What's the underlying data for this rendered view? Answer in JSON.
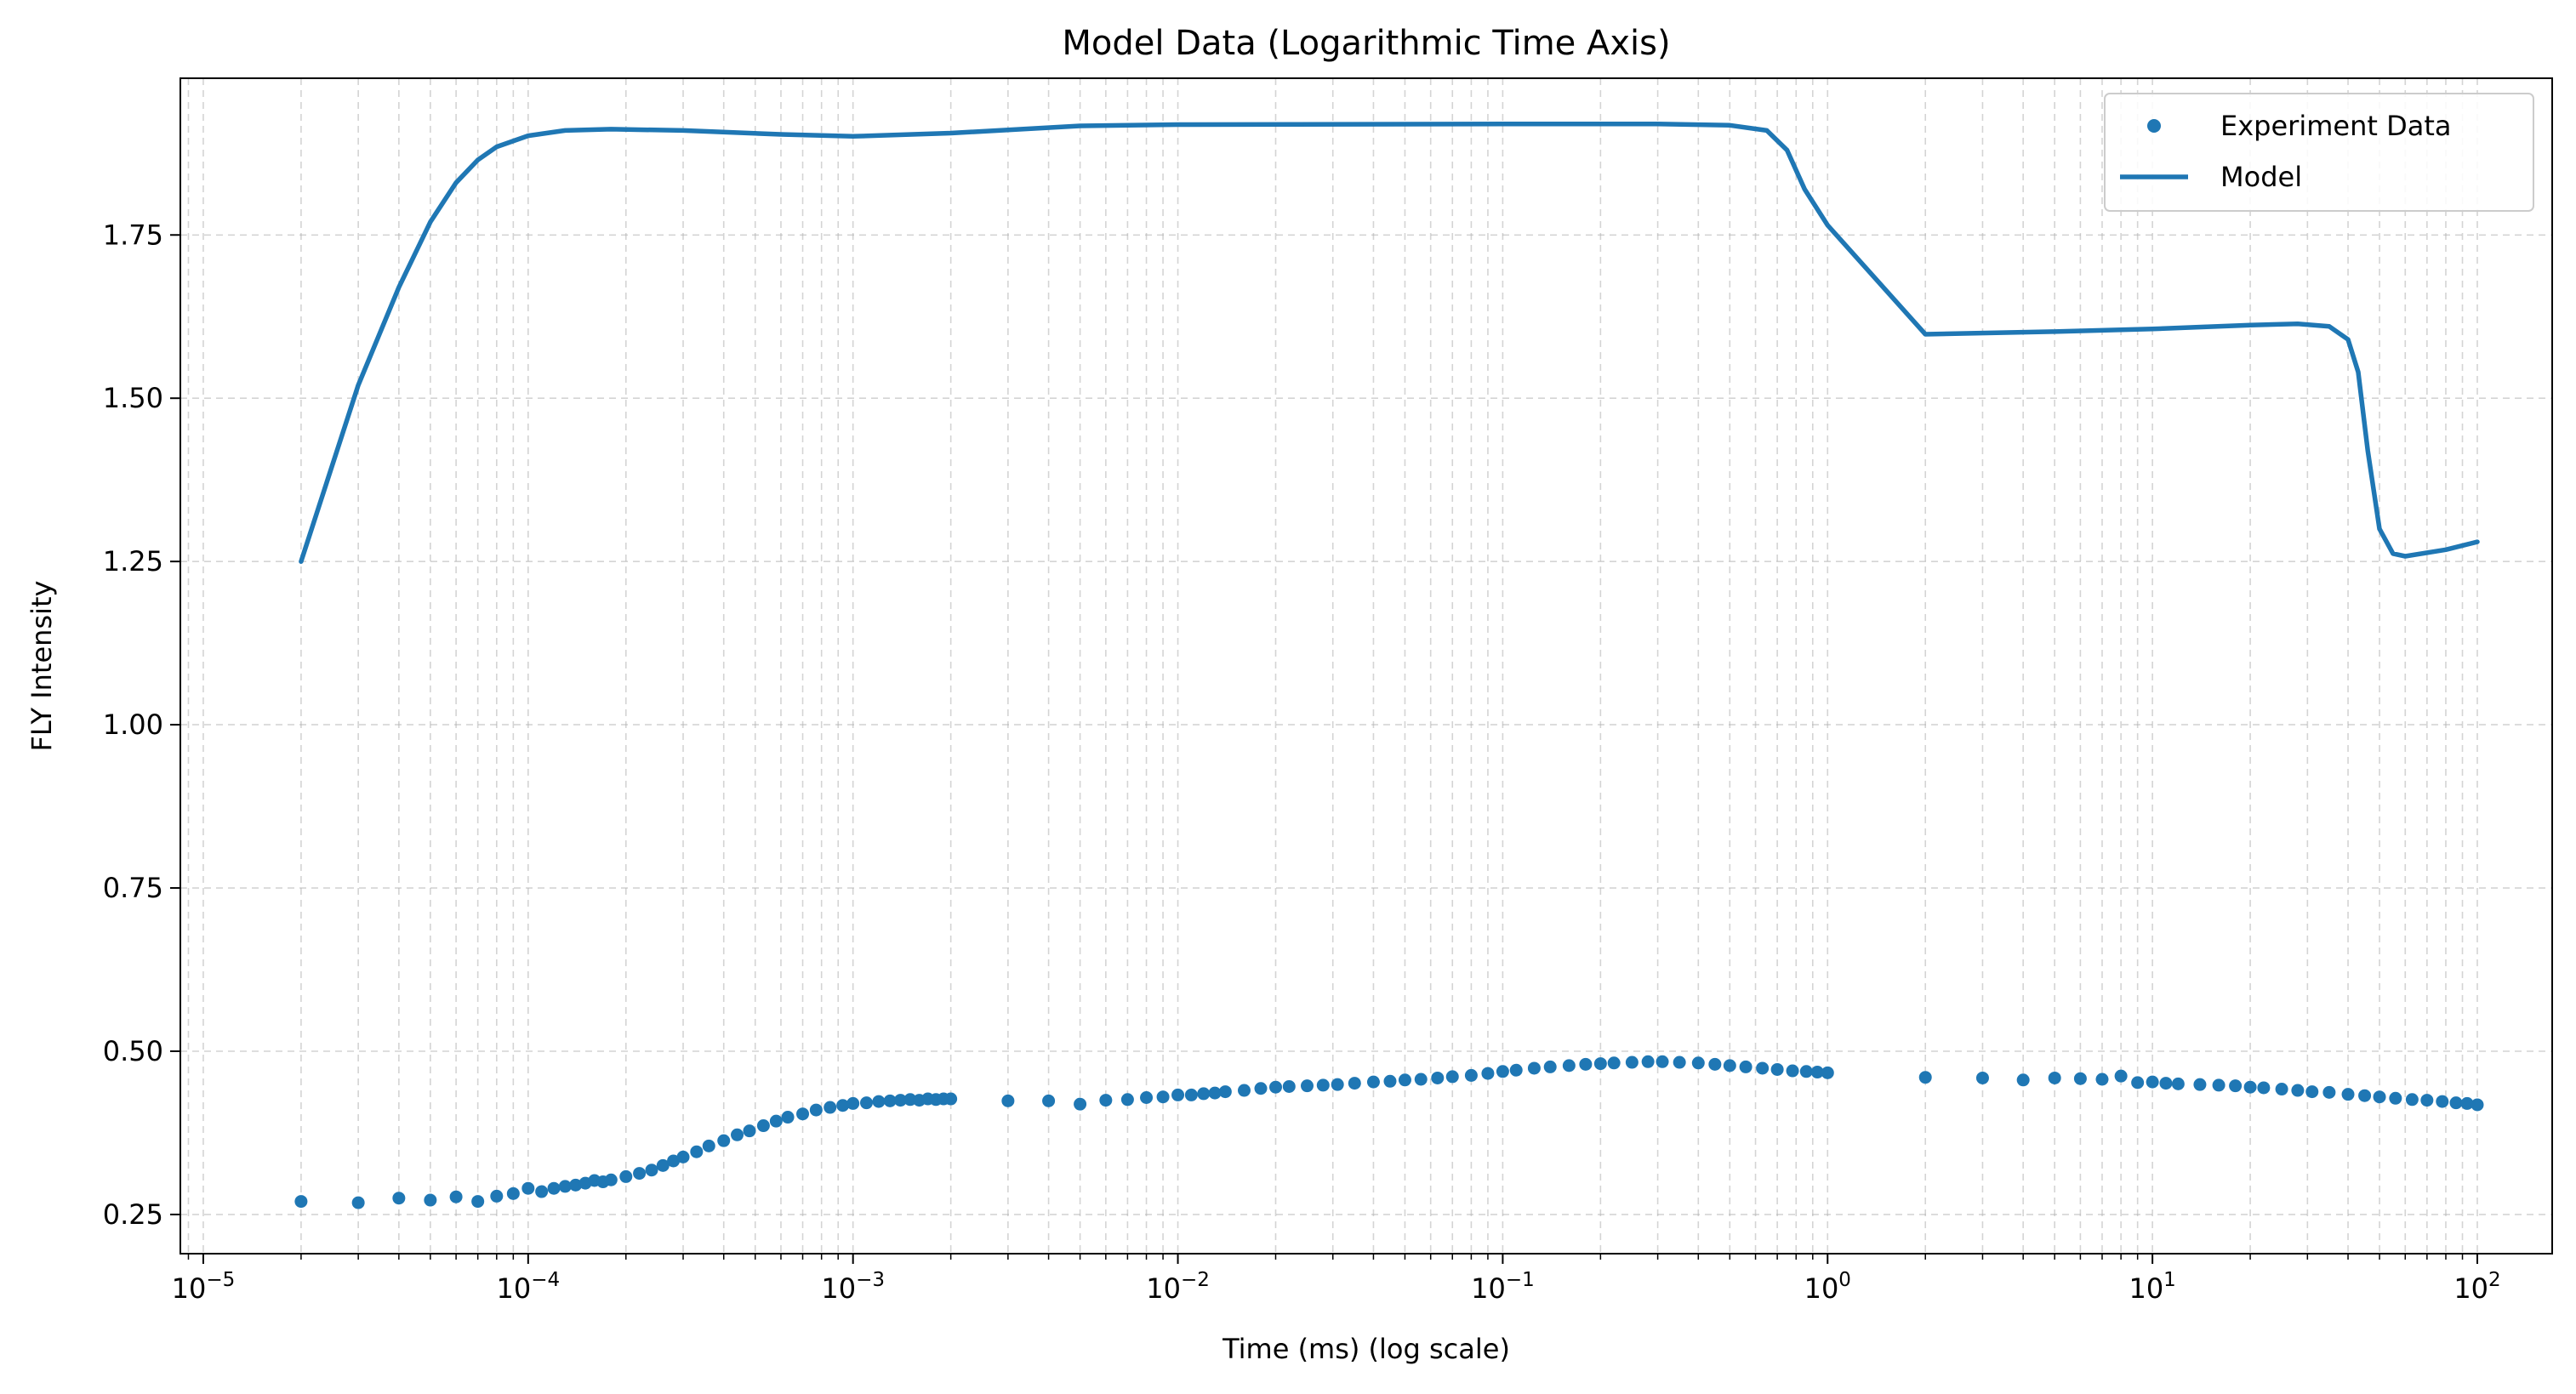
{
  "chart_data": {
    "type": "scatter",
    "title": "Model Data (Logarithmic Time Axis)",
    "xlabel": "Time (ms) (log scale)",
    "ylabel": "FLY Intensity",
    "x_scale": "log",
    "xlim": [
      8.5e-06,
      170
    ],
    "ylim": [
      0.19,
      1.99
    ],
    "x_ticks": [
      {
        "value": 1e-05,
        "base": "10",
        "exp": "−5"
      },
      {
        "value": 0.0001,
        "base": "10",
        "exp": "−4"
      },
      {
        "value": 0.001,
        "base": "10",
        "exp": "−3"
      },
      {
        "value": 0.01,
        "base": "10",
        "exp": "−2"
      },
      {
        "value": 0.1,
        "base": "10",
        "exp": "−1"
      },
      {
        "value": 1,
        "base": "10",
        "exp": "0"
      },
      {
        "value": 10,
        "base": "10",
        "exp": "1"
      },
      {
        "value": 100,
        "base": "10",
        "exp": "2"
      }
    ],
    "y_ticks": [
      {
        "value": 0.25,
        "label": "0.25"
      },
      {
        "value": 0.5,
        "label": "0.50"
      },
      {
        "value": 0.75,
        "label": "0.75"
      },
      {
        "value": 1.0,
        "label": "1.00"
      },
      {
        "value": 1.25,
        "label": "1.25"
      },
      {
        "value": 1.5,
        "label": "1.50"
      },
      {
        "value": 1.75,
        "label": "1.75"
      }
    ],
    "grid": true,
    "legend_position": "top-right",
    "colors": {
      "series": "#1f77b4",
      "grid": "#b0b0b0",
      "axis": "#000000"
    },
    "series": [
      {
        "name": "Experiment Data",
        "type": "scatter",
        "points": [
          [
            2e-05,
            0.27
          ],
          [
            3e-05,
            0.268
          ],
          [
            4e-05,
            0.275
          ],
          [
            5e-05,
            0.272
          ],
          [
            6e-05,
            0.277
          ],
          [
            7e-05,
            0.27
          ],
          [
            8e-05,
            0.278
          ],
          [
            9e-05,
            0.282
          ],
          [
            0.0001,
            0.29
          ],
          [
            0.00011,
            0.285
          ],
          [
            0.00012,
            0.29
          ],
          [
            0.00013,
            0.293
          ],
          [
            0.00014,
            0.295
          ],
          [
            0.00015,
            0.298
          ],
          [
            0.00016,
            0.302
          ],
          [
            0.00017,
            0.3
          ],
          [
            0.00018,
            0.303
          ],
          [
            0.0002,
            0.308
          ],
          [
            0.00022,
            0.313
          ],
          [
            0.00024,
            0.318
          ],
          [
            0.00026,
            0.325
          ],
          [
            0.00028,
            0.332
          ],
          [
            0.0003,
            0.338
          ],
          [
            0.00033,
            0.346
          ],
          [
            0.00036,
            0.355
          ],
          [
            0.0004,
            0.363
          ],
          [
            0.00044,
            0.372
          ],
          [
            0.00048,
            0.378
          ],
          [
            0.00053,
            0.386
          ],
          [
            0.00058,
            0.393
          ],
          [
            0.00063,
            0.399
          ],
          [
            0.0007,
            0.404
          ],
          [
            0.00077,
            0.41
          ],
          [
            0.00085,
            0.414
          ],
          [
            0.00093,
            0.417
          ],
          [
            0.001,
            0.42
          ],
          [
            0.0011,
            0.421
          ],
          [
            0.0012,
            0.423
          ],
          [
            0.0013,
            0.424
          ],
          [
            0.0014,
            0.425
          ],
          [
            0.0015,
            0.426
          ],
          [
            0.0016,
            0.425
          ],
          [
            0.0017,
            0.427
          ],
          [
            0.0018,
            0.426
          ],
          [
            0.0019,
            0.427
          ],
          [
            0.002,
            0.427
          ],
          [
            0.003,
            0.424
          ],
          [
            0.004,
            0.424
          ],
          [
            0.005,
            0.419
          ],
          [
            0.006,
            0.425
          ],
          [
            0.007,
            0.426
          ],
          [
            0.008,
            0.429
          ],
          [
            0.009,
            0.43
          ],
          [
            0.01,
            0.433
          ],
          [
            0.011,
            0.433
          ],
          [
            0.012,
            0.435
          ],
          [
            0.013,
            0.436
          ],
          [
            0.014,
            0.438
          ],
          [
            0.016,
            0.44
          ],
          [
            0.018,
            0.443
          ],
          [
            0.02,
            0.445
          ],
          [
            0.022,
            0.446
          ],
          [
            0.025,
            0.447
          ],
          [
            0.028,
            0.448
          ],
          [
            0.031,
            0.449
          ],
          [
            0.035,
            0.451
          ],
          [
            0.04,
            0.453
          ],
          [
            0.045,
            0.454
          ],
          [
            0.05,
            0.456
          ],
          [
            0.056,
            0.457
          ],
          [
            0.063,
            0.459
          ],
          [
            0.07,
            0.461
          ],
          [
            0.08,
            0.463
          ],
          [
            0.09,
            0.466
          ],
          [
            0.1,
            0.469
          ],
          [
            0.11,
            0.471
          ],
          [
            0.125,
            0.474
          ],
          [
            0.14,
            0.476
          ],
          [
            0.16,
            0.478
          ],
          [
            0.18,
            0.48
          ],
          [
            0.2,
            0.481
          ],
          [
            0.22,
            0.482
          ],
          [
            0.25,
            0.483
          ],
          [
            0.28,
            0.484
          ],
          [
            0.31,
            0.484
          ],
          [
            0.35,
            0.483
          ],
          [
            0.4,
            0.482
          ],
          [
            0.45,
            0.48
          ],
          [
            0.5,
            0.478
          ],
          [
            0.56,
            0.476
          ],
          [
            0.63,
            0.474
          ],
          [
            0.7,
            0.472
          ],
          [
            0.78,
            0.47
          ],
          [
            0.86,
            0.469
          ],
          [
            0.93,
            0.468
          ],
          [
            1,
            0.467
          ],
          [
            2,
            0.46
          ],
          [
            3,
            0.459
          ],
          [
            4,
            0.456
          ],
          [
            5,
            0.459
          ],
          [
            6,
            0.458
          ],
          [
            7,
            0.457
          ],
          [
            8,
            0.462
          ],
          [
            9,
            0.452
          ],
          [
            10,
            0.453
          ],
          [
            11,
            0.451
          ],
          [
            12,
            0.45
          ],
          [
            14,
            0.449
          ],
          [
            16,
            0.448
          ],
          [
            18,
            0.447
          ],
          [
            20,
            0.445
          ],
          [
            22,
            0.444
          ],
          [
            25,
            0.442
          ],
          [
            28,
            0.44
          ],
          [
            31,
            0.438
          ],
          [
            35,
            0.437
          ],
          [
            40,
            0.434
          ],
          [
            45,
            0.432
          ],
          [
            50,
            0.43
          ],
          [
            56,
            0.428
          ],
          [
            63,
            0.426
          ],
          [
            70,
            0.425
          ],
          [
            78,
            0.423
          ],
          [
            86,
            0.421
          ],
          [
            93,
            0.42
          ],
          [
            100,
            0.418
          ]
        ]
      },
      {
        "name": "Model",
        "type": "line",
        "points": [
          [
            2e-05,
            1.25
          ],
          [
            3e-05,
            1.52
          ],
          [
            4e-05,
            1.67
          ],
          [
            5e-05,
            1.77
          ],
          [
            6e-05,
            1.83
          ],
          [
            7e-05,
            1.865
          ],
          [
            8e-05,
            1.885
          ],
          [
            0.0001,
            1.902
          ],
          [
            0.00013,
            1.91
          ],
          [
            0.00018,
            1.912
          ],
          [
            0.0003,
            1.91
          ],
          [
            0.0006,
            1.904
          ],
          [
            0.001,
            1.901
          ],
          [
            0.002,
            1.906
          ],
          [
            0.005,
            1.917
          ],
          [
            0.01,
            1.919
          ],
          [
            0.1,
            1.92
          ],
          [
            0.3,
            1.92
          ],
          [
            0.5,
            1.918
          ],
          [
            0.65,
            1.91
          ],
          [
            0.75,
            1.88
          ],
          [
            0.85,
            1.82
          ],
          [
            1,
            1.765
          ],
          [
            2,
            1.598
          ],
          [
            5,
            1.602
          ],
          [
            10,
            1.606
          ],
          [
            20,
            1.612
          ],
          [
            28,
            1.614
          ],
          [
            35,
            1.61
          ],
          [
            40,
            1.59
          ],
          [
            43,
            1.54
          ],
          [
            46,
            1.42
          ],
          [
            50,
            1.3
          ],
          [
            55,
            1.262
          ],
          [
            60,
            1.258
          ],
          [
            80,
            1.268
          ],
          [
            100,
            1.28
          ]
        ]
      }
    ]
  }
}
